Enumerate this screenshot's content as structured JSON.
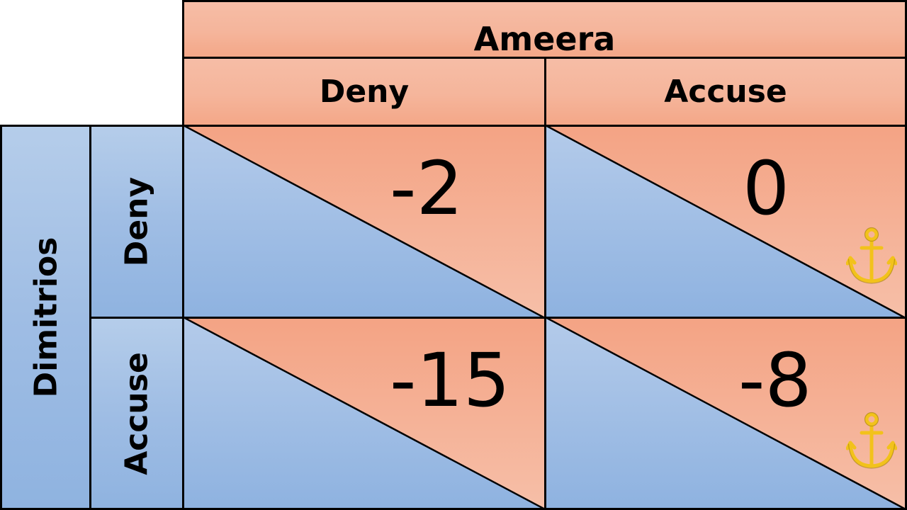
{
  "column_player": {
    "name": "Ameera",
    "strategies": [
      "Deny",
      "Accuse"
    ]
  },
  "row_player": {
    "name": "Dimitrios",
    "strategies": [
      "Deny",
      "Accuse"
    ]
  },
  "cells": [
    {
      "row": "Deny",
      "col": "Deny",
      "column_payoff": "-2",
      "anchor": false
    },
    {
      "row": "Deny",
      "col": "Accuse",
      "column_payoff": "0",
      "anchor": true
    },
    {
      "row": "Accuse",
      "col": "Deny",
      "column_payoff": "-15",
      "anchor": false
    },
    {
      "row": "Accuse",
      "col": "Accuse",
      "column_payoff": "-8",
      "anchor": true
    }
  ],
  "icons": {
    "anchor": "anchor-icon"
  },
  "colors": {
    "orange": "#f4a788",
    "blue": "#8fb3e0",
    "anchor_gold": "#f2c21b",
    "border": "#000000"
  }
}
